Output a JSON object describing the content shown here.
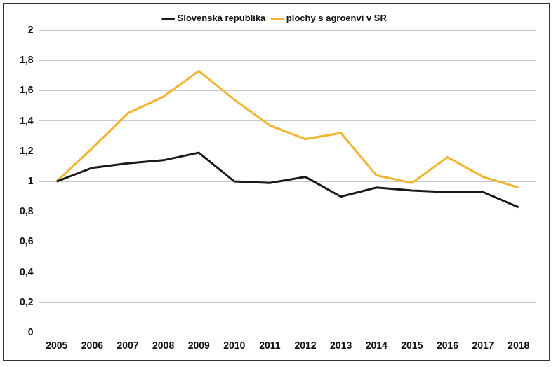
{
  "chart_data": {
    "type": "line",
    "categories": [
      "2005",
      "2006",
      "2007",
      "2008",
      "2009",
      "2010",
      "2011",
      "2012",
      "2013",
      "2014",
      "2015",
      "2016",
      "2017",
      "2018"
    ],
    "series": [
      {
        "name": "Slovenská republika",
        "color": "#1a1a1a",
        "values": [
          1.0,
          1.09,
          1.12,
          1.14,
          1.19,
          1.0,
          0.99,
          1.03,
          0.9,
          0.96,
          0.94,
          0.93,
          0.93,
          0.83
        ]
      },
      {
        "name": "plochy s agroenvi v SR",
        "color": "#f2b431",
        "values": [
          1.0,
          1.22,
          1.45,
          1.56,
          1.73,
          1.54,
          1.37,
          1.28,
          1.32,
          1.04,
          0.99,
          1.16,
          1.03,
          0.96
        ]
      }
    ],
    "ylim": [
      0,
      2
    ],
    "yticks": [
      0,
      {
        "value": 0.2,
        "label": "0,2"
      },
      {
        "value": 0.4,
        "label": "0,4"
      },
      {
        "value": 0.6,
        "label": "0,6"
      },
      {
        "value": 0.8,
        "label": "0,8"
      },
      1,
      {
        "value": 1.2,
        "label": "1,2"
      },
      {
        "value": 1.4,
        "label": "1,4"
      },
      {
        "value": 1.6,
        "label": "1,6"
      },
      {
        "value": 1.8,
        "label": "1,8"
      },
      2
    ],
    "grid": true,
    "legend": "top"
  }
}
